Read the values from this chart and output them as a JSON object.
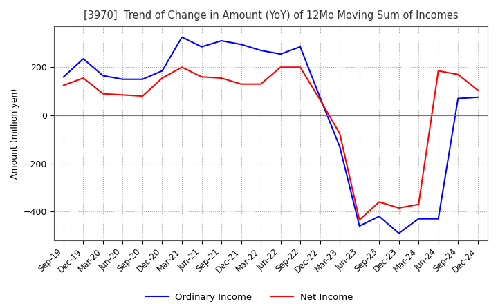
{
  "title": "[3970]  Trend of Change in Amount (YoY) of 12Mo Moving Sum of Incomes",
  "ylabel": "Amount (million yen)",
  "x_labels": [
    "Sep-19",
    "Dec-19",
    "Mar-20",
    "Jun-20",
    "Sep-20",
    "Dec-20",
    "Mar-21",
    "Jun-21",
    "Sep-21",
    "Dec-21",
    "Mar-22",
    "Jun-22",
    "Sep-22",
    "Dec-22",
    "Mar-23",
    "Jun-23",
    "Sep-23",
    "Dec-23",
    "Mar-24",
    "Jun-24",
    "Sep-24",
    "Dec-24"
  ],
  "ordinary_income": [
    160,
    235,
    165,
    150,
    150,
    185,
    325,
    285,
    310,
    295,
    270,
    255,
    285,
    75,
    -130,
    -460,
    -420,
    -490,
    -430,
    -430,
    70,
    75
  ],
  "net_income": [
    125,
    155,
    90,
    85,
    80,
    155,
    200,
    160,
    155,
    130,
    130,
    200,
    200,
    65,
    -75,
    -435,
    -360,
    -385,
    -370,
    185,
    170,
    105
  ],
  "ordinary_income_color": "#0000FF",
  "net_income_color": "#FF0000",
  "ylim": [
    -520,
    370
  ],
  "yticks": [
    200,
    0,
    -200,
    -400
  ],
  "background_color": "#FFFFFF",
  "grid_color": "#AAAAAA",
  "legend_labels": [
    "Ordinary Income",
    "Net Income"
  ],
  "line_width": 1.5
}
